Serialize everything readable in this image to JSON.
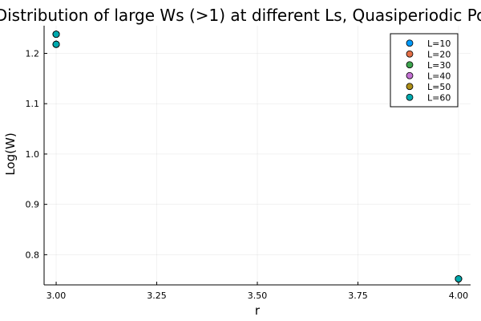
{
  "chart_data": {
    "type": "scatter",
    "title": "Distribution of large Ws (>1) at different Ls, Quasiperiodic Po",
    "xlabel": "r",
    "ylabel": "Log(W)",
    "xlim": [
      2.97,
      4.03
    ],
    "ylim": [
      0.74,
      1.255
    ],
    "xticks": [
      {
        "value": 3.0,
        "label": "3.00"
      },
      {
        "value": 3.25,
        "label": "3.25"
      },
      {
        "value": 3.5,
        "label": "3.50"
      },
      {
        "value": 3.75,
        "label": "3.75"
      },
      {
        "value": 4.0,
        "label": "4.00"
      }
    ],
    "yticks": [
      {
        "value": 0.8,
        "label": "0.8"
      },
      {
        "value": 0.9,
        "label": "0.9"
      },
      {
        "value": 1.0,
        "label": "1.0"
      },
      {
        "value": 1.1,
        "label": "1.1"
      },
      {
        "value": 1.2,
        "label": "1.2"
      }
    ],
    "grid": true,
    "legend_position": "top-right",
    "series": [
      {
        "name": "L=10",
        "color": "#009AFA",
        "x": [
          3.0,
          3.0,
          4.0
        ],
        "y": [
          1.238,
          1.218,
          0.752
        ]
      },
      {
        "name": "L=20",
        "color": "#E36F47",
        "x": [
          3.0,
          3.0,
          4.0
        ],
        "y": [
          1.238,
          1.218,
          0.752
        ]
      },
      {
        "name": "L=30",
        "color": "#3EA44E",
        "x": [
          3.0,
          3.0,
          4.0
        ],
        "y": [
          1.238,
          1.218,
          0.752
        ]
      },
      {
        "name": "L=40",
        "color": "#C371D2",
        "x": [
          3.0,
          3.0,
          4.0
        ],
        "y": [
          1.238,
          1.218,
          0.752
        ]
      },
      {
        "name": "L=50",
        "color": "#AC8E18",
        "x": [
          3.0,
          3.0,
          4.0
        ],
        "y": [
          1.238,
          1.218,
          0.752
        ]
      },
      {
        "name": "L=60",
        "color": "#00A9AD",
        "x": [
          3.0,
          3.0,
          4.0
        ],
        "y": [
          1.238,
          1.218,
          0.752
        ]
      }
    ]
  }
}
